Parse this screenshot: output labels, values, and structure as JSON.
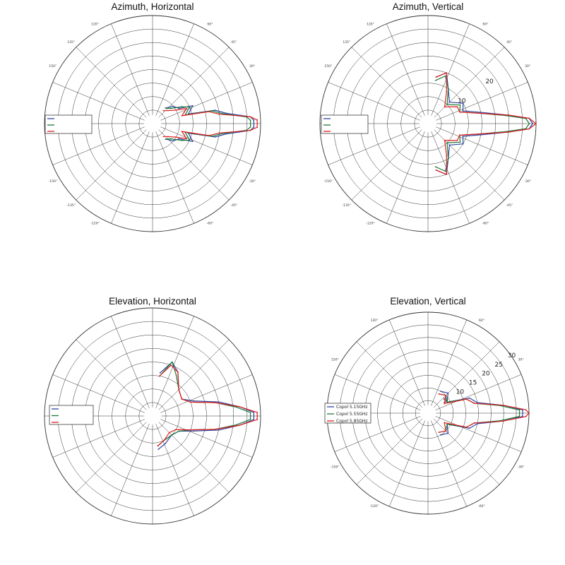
{
  "chart_data": [
    {
      "type": "polar-line",
      "title": "Azimuth, Horizontal",
      "angle_tick_labels": [
        "60°",
        "45°",
        "30°",
        "-30°",
        "-45°",
        "-60°",
        "-120°",
        "-135°",
        "-150°",
        "150°",
        "135°",
        "120°"
      ],
      "radial_tick_labels": [],
      "legend": {
        "placement": "left",
        "entries": [
          "",
          "",
          ""
        ]
      },
      "series": [
        {
          "color": "#3046a0",
          "values": [
            {
              "angle": -50,
              "r": 6
            },
            {
              "angle": -40,
              "r": 8
            },
            {
              "angle": -30,
              "r": 9
            },
            {
              "angle": -24,
              "r": 13
            },
            {
              "angle": -20,
              "r": 12
            },
            {
              "angle": -15,
              "r": 11
            },
            {
              "angle": -12,
              "r": 19
            },
            {
              "angle": -8,
              "r": 22
            },
            {
              "angle": -4,
              "r": 29
            },
            {
              "angle": -2,
              "r": 30
            },
            {
              "angle": 0,
              "r": 30
            },
            {
              "angle": 2,
              "r": 30
            },
            {
              "angle": 4,
              "r": 29
            },
            {
              "angle": 8,
              "r": 22
            },
            {
              "angle": 12,
              "r": 19
            },
            {
              "angle": 15,
              "r": 11
            },
            {
              "angle": 20,
              "r": 12
            },
            {
              "angle": 24,
              "r": 13
            },
            {
              "angle": 30,
              "r": 9
            },
            {
              "angle": 40,
              "r": 8
            },
            {
              "angle": 50,
              "r": 6
            }
          ]
        },
        {
          "color": "#1c7a3a",
          "values": [
            {
              "angle": -50,
              "r": 6
            },
            {
              "angle": -40,
              "r": 7
            },
            {
              "angle": -30,
              "r": 10
            },
            {
              "angle": -24,
              "r": 12
            },
            {
              "angle": -20,
              "r": 11
            },
            {
              "angle": -15,
              "r": 10
            },
            {
              "angle": -12,
              "r": 18
            },
            {
              "angle": -8,
              "r": 21
            },
            {
              "angle": -4,
              "r": 28
            },
            {
              "angle": -2,
              "r": 29
            },
            {
              "angle": 0,
              "r": 29
            },
            {
              "angle": 2,
              "r": 29
            },
            {
              "angle": 4,
              "r": 28
            },
            {
              "angle": 8,
              "r": 21
            },
            {
              "angle": 12,
              "r": 18
            },
            {
              "angle": 15,
              "r": 10
            },
            {
              "angle": 20,
              "r": 11
            },
            {
              "angle": 24,
              "r": 12
            },
            {
              "angle": 30,
              "r": 10
            },
            {
              "angle": 40,
              "r": 7
            },
            {
              "angle": 50,
              "r": 6
            }
          ]
        },
        {
          "color": "#e02020",
          "values": [
            {
              "angle": -50,
              "r": 5
            },
            {
              "angle": -40,
              "r": 6
            },
            {
              "angle": -30,
              "r": 8
            },
            {
              "angle": -24,
              "r": 11
            },
            {
              "angle": -20,
              "r": 10
            },
            {
              "angle": -15,
              "r": 9
            },
            {
              "angle": -12,
              "r": 17
            },
            {
              "angle": -8,
              "r": 20
            },
            {
              "angle": -4,
              "r": 29
            },
            {
              "angle": -2,
              "r": 31
            },
            {
              "angle": 0,
              "r": 31
            },
            {
              "angle": 2,
              "r": 31
            },
            {
              "angle": 4,
              "r": 29
            },
            {
              "angle": 8,
              "r": 20
            },
            {
              "angle": 12,
              "r": 17
            },
            {
              "angle": 15,
              "r": 9
            },
            {
              "angle": 20,
              "r": 10
            },
            {
              "angle": 24,
              "r": 11
            },
            {
              "angle": 30,
              "r": 8
            },
            {
              "angle": 40,
              "r": 6
            },
            {
              "angle": 50,
              "r": 5
            }
          ]
        }
      ]
    },
    {
      "type": "polar-line",
      "title": "Azimuth, Vertical",
      "angle_tick_labels": [
        "60°",
        "45°",
        "30°",
        "-30°",
        "-45°",
        "-60°",
        "-120°",
        "-135°",
        "-150°",
        "150°",
        "135°",
        "120°"
      ],
      "radial_tick_labels": [
        "10",
        "20"
      ],
      "legend": {
        "placement": "left",
        "entries": [
          "",
          "",
          ""
        ]
      },
      "series": [
        {
          "color": "#3046a0",
          "values": [
            {
              "angle": -80,
              "r": 14
            },
            {
              "angle": -70,
              "r": 16
            },
            {
              "angle": -60,
              "r": 12
            },
            {
              "angle": -45,
              "r": 9
            },
            {
              "angle": -30,
              "r": 12
            },
            {
              "angle": -20,
              "r": 11
            },
            {
              "angle": -12,
              "r": 16
            },
            {
              "angle": -6,
              "r": 24
            },
            {
              "angle": -3,
              "r": 30
            },
            {
              "angle": 0,
              "r": 31
            },
            {
              "angle": 3,
              "r": 30
            },
            {
              "angle": 6,
              "r": 24
            },
            {
              "angle": 12,
              "r": 16
            },
            {
              "angle": 20,
              "r": 11
            },
            {
              "angle": 30,
              "r": 12
            },
            {
              "angle": 45,
              "r": 9
            },
            {
              "angle": 60,
              "r": 12
            },
            {
              "angle": 70,
              "r": 16
            },
            {
              "angle": 80,
              "r": 14
            }
          ]
        },
        {
          "color": "#1c7a3a",
          "values": [
            {
              "angle": -80,
              "r": 13
            },
            {
              "angle": -70,
              "r": 15
            },
            {
              "angle": -60,
              "r": 12
            },
            {
              "angle": -45,
              "r": 8
            },
            {
              "angle": -30,
              "r": 11
            },
            {
              "angle": -20,
              "r": 10
            },
            {
              "angle": -12,
              "r": 15
            },
            {
              "angle": -6,
              "r": 23
            },
            {
              "angle": -3,
              "r": 29
            },
            {
              "angle": 0,
              "r": 30
            },
            {
              "angle": 3,
              "r": 29
            },
            {
              "angle": 6,
              "r": 23
            },
            {
              "angle": 12,
              "r": 15
            },
            {
              "angle": 20,
              "r": 10
            },
            {
              "angle": 30,
              "r": 11
            },
            {
              "angle": 45,
              "r": 8
            },
            {
              "angle": 60,
              "r": 12
            },
            {
              "angle": 70,
              "r": 15
            },
            {
              "angle": 80,
              "r": 13
            }
          ]
        },
        {
          "color": "#e02020",
          "values": [
            {
              "angle": -80,
              "r": 14
            },
            {
              "angle": -70,
              "r": 16
            },
            {
              "angle": -60,
              "r": 11
            },
            {
              "angle": -45,
              "r": 7
            },
            {
              "angle": -30,
              "r": 10
            },
            {
              "angle": -20,
              "r": 10
            },
            {
              "angle": -12,
              "r": 15
            },
            {
              "angle": -6,
              "r": 24
            },
            {
              "angle": -3,
              "r": 30
            },
            {
              "angle": 0,
              "r": 32
            },
            {
              "angle": 3,
              "r": 30
            },
            {
              "angle": 6,
              "r": 24
            },
            {
              "angle": 12,
              "r": 15
            },
            {
              "angle": 20,
              "r": 10
            },
            {
              "angle": 30,
              "r": 10
            },
            {
              "angle": 45,
              "r": 7
            },
            {
              "angle": 60,
              "r": 11
            },
            {
              "angle": 70,
              "r": 16
            },
            {
              "angle": 80,
              "r": 14
            }
          ]
        }
      ]
    },
    {
      "type": "polar-line",
      "title": "Elevation, Horizontal",
      "angle_tick_labels": [],
      "radial_tick_labels": [],
      "legend": {
        "placement": "left",
        "entries": [
          "",
          "",
          ""
        ]
      },
      "series": [
        {
          "color": "#3046a0",
          "values": [
            {
              "angle": -80,
              "r": 10
            },
            {
              "angle": -65,
              "r": 9
            },
            {
              "angle": -45,
              "r": 8
            },
            {
              "angle": -30,
              "r": 9
            },
            {
              "angle": -20,
              "r": 13
            },
            {
              "angle": -12,
              "r": 20
            },
            {
              "angle": -6,
              "r": 26
            },
            {
              "angle": -2,
              "r": 30
            },
            {
              "angle": 0,
              "r": 30
            },
            {
              "angle": 2,
              "r": 30
            },
            {
              "angle": 6,
              "r": 26
            },
            {
              "angle": 12,
              "r": 20
            },
            {
              "angle": 20,
              "r": 13
            },
            {
              "angle": 30,
              "r": 10
            },
            {
              "angle": 45,
              "r": 11
            },
            {
              "angle": 60,
              "r": 15
            },
            {
              "angle": 70,
              "r": 17
            },
            {
              "angle": 80,
              "r": 13
            }
          ]
        },
        {
          "color": "#1c7a3a",
          "values": [
            {
              "angle": -80,
              "r": 9
            },
            {
              "angle": -65,
              "r": 8
            },
            {
              "angle": -45,
              "r": 8
            },
            {
              "angle": -30,
              "r": 9
            },
            {
              "angle": -20,
              "r": 12
            },
            {
              "angle": -12,
              "r": 19
            },
            {
              "angle": -6,
              "r": 25
            },
            {
              "angle": -2,
              "r": 29
            },
            {
              "angle": 0,
              "r": 29
            },
            {
              "angle": 2,
              "r": 29
            },
            {
              "angle": 6,
              "r": 25
            },
            {
              "angle": 12,
              "r": 19
            },
            {
              "angle": 20,
              "r": 12
            },
            {
              "angle": 30,
              "r": 10
            },
            {
              "angle": 45,
              "r": 11
            },
            {
              "angle": 60,
              "r": 14
            },
            {
              "angle": 70,
              "r": 17
            },
            {
              "angle": 80,
              "r": 12
            }
          ]
        },
        {
          "color": "#e02020",
          "values": [
            {
              "angle": -80,
              "r": 9
            },
            {
              "angle": -65,
              "r": 8
            },
            {
              "angle": -45,
              "r": 7
            },
            {
              "angle": -30,
              "r": 8
            },
            {
              "angle": -20,
              "r": 12
            },
            {
              "angle": -12,
              "r": 19
            },
            {
              "angle": -6,
              "r": 26
            },
            {
              "angle": -2,
              "r": 31
            },
            {
              "angle": 0,
              "r": 31
            },
            {
              "angle": 2,
              "r": 31
            },
            {
              "angle": 6,
              "r": 26
            },
            {
              "angle": 12,
              "r": 19
            },
            {
              "angle": 20,
              "r": 12
            },
            {
              "angle": 30,
              "r": 10
            },
            {
              "angle": 45,
              "r": 11
            },
            {
              "angle": 60,
              "r": 15
            },
            {
              "angle": 70,
              "r": 16
            },
            {
              "angle": 80,
              "r": 12
            }
          ]
        }
      ]
    },
    {
      "type": "polar-line",
      "title": "Elevation, Vertical",
      "angle_tick_labels": [
        "60°",
        "30°",
        "-30°",
        "-60°",
        "-120°",
        "-150°",
        "150°",
        "120°"
      ],
      "radial_tick_labels": [
        "5",
        "10",
        "15",
        "20",
        "25",
        "30"
      ],
      "legend": {
        "placement": "left",
        "entries": [
          "Copol 5.15GHz",
          "Copol 5.55GHz",
          "Copol 5.85GHz"
        ]
      },
      "series": [
        {
          "color": "#3046a0",
          "values": [
            {
              "angle": -60,
              "r": 8
            },
            {
              "angle": -45,
              "r": 9
            },
            {
              "angle": -30,
              "r": 7
            },
            {
              "angle": -20,
              "r": 14
            },
            {
              "angle": -12,
              "r": 16
            },
            {
              "angle": -6,
              "r": 24
            },
            {
              "angle": -2,
              "r": 30
            },
            {
              "angle": 0,
              "r": 30
            },
            {
              "angle": 2,
              "r": 30
            },
            {
              "angle": 6,
              "r": 24
            },
            {
              "angle": 12,
              "r": 16
            },
            {
              "angle": 20,
              "r": 14
            },
            {
              "angle": 30,
              "r": 7
            },
            {
              "angle": 45,
              "r": 9
            },
            {
              "angle": 60,
              "r": 8
            }
          ]
        },
        {
          "color": "#1c7a3a",
          "values": [
            {
              "angle": -60,
              "r": 7
            },
            {
              "angle": -45,
              "r": 8
            },
            {
              "angle": -30,
              "r": 7
            },
            {
              "angle": -20,
              "r": 13
            },
            {
              "angle": -12,
              "r": 15
            },
            {
              "angle": -6,
              "r": 23
            },
            {
              "angle": -2,
              "r": 29
            },
            {
              "angle": 0,
              "r": 29
            },
            {
              "angle": 2,
              "r": 29
            },
            {
              "angle": 6,
              "r": 23
            },
            {
              "angle": 12,
              "r": 15
            },
            {
              "angle": 20,
              "r": 13
            },
            {
              "angle": 30,
              "r": 7
            },
            {
              "angle": 45,
              "r": 8
            },
            {
              "angle": 60,
              "r": 7
            }
          ]
        },
        {
          "color": "#e02020",
          "values": [
            {
              "angle": -60,
              "r": 7
            },
            {
              "angle": -45,
              "r": 8
            },
            {
              "angle": -30,
              "r": 6
            },
            {
              "angle": -20,
              "r": 13
            },
            {
              "angle": -12,
              "r": 15
            },
            {
              "angle": -6,
              "r": 24
            },
            {
              "angle": -2,
              "r": 31
            },
            {
              "angle": 0,
              "r": 32
            },
            {
              "angle": 2,
              "r": 31
            },
            {
              "angle": 6,
              "r": 24
            },
            {
              "angle": 12,
              "r": 15
            },
            {
              "angle": 20,
              "r": 13
            },
            {
              "angle": 30,
              "r": 6
            },
            {
              "angle": 45,
              "r": 8
            },
            {
              "angle": 60,
              "r": 7
            }
          ]
        }
      ]
    }
  ]
}
